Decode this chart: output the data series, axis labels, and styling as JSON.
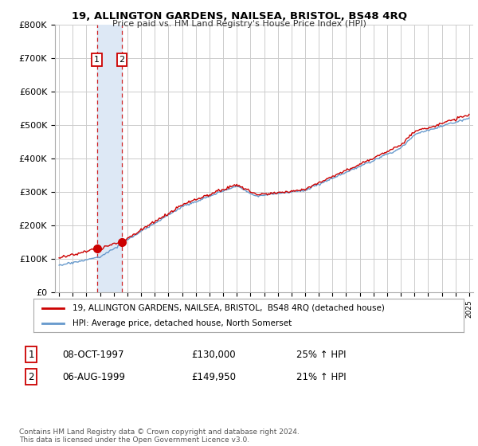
{
  "title": "19, ALLINGTON GARDENS, NAILSEA, BRISTOL, BS48 4RQ",
  "subtitle": "Price paid vs. HM Land Registry's House Price Index (HPI)",
  "ylim": [
    0,
    800000
  ],
  "yticks": [
    0,
    100000,
    200000,
    300000,
    400000,
    500000,
    600000,
    700000,
    800000
  ],
  "ytick_labels": [
    "£0",
    "£100K",
    "£200K",
    "£300K",
    "£400K",
    "£500K",
    "£600K",
    "£700K",
    "£800K"
  ],
  "sale1_date": 1997.77,
  "sale1_price": 130000,
  "sale2_date": 1999.59,
  "sale2_price": 149950,
  "legend_line1": "19, ALLINGTON GARDENS, NAILSEA, BRISTOL,  BS48 4RQ (detached house)",
  "legend_line2": "HPI: Average price, detached house, North Somerset",
  "footnote": "Contains HM Land Registry data © Crown copyright and database right 2024.\nThis data is licensed under the Open Government Licence v3.0.",
  "line1_color": "#cc0000",
  "line2_color": "#6699cc",
  "marker_color": "#cc0000",
  "dashed_color": "#cc0000",
  "box_color": "#cc0000",
  "background_color": "#ffffff",
  "grid_color": "#cccccc",
  "shade_color": "#dde8f5"
}
